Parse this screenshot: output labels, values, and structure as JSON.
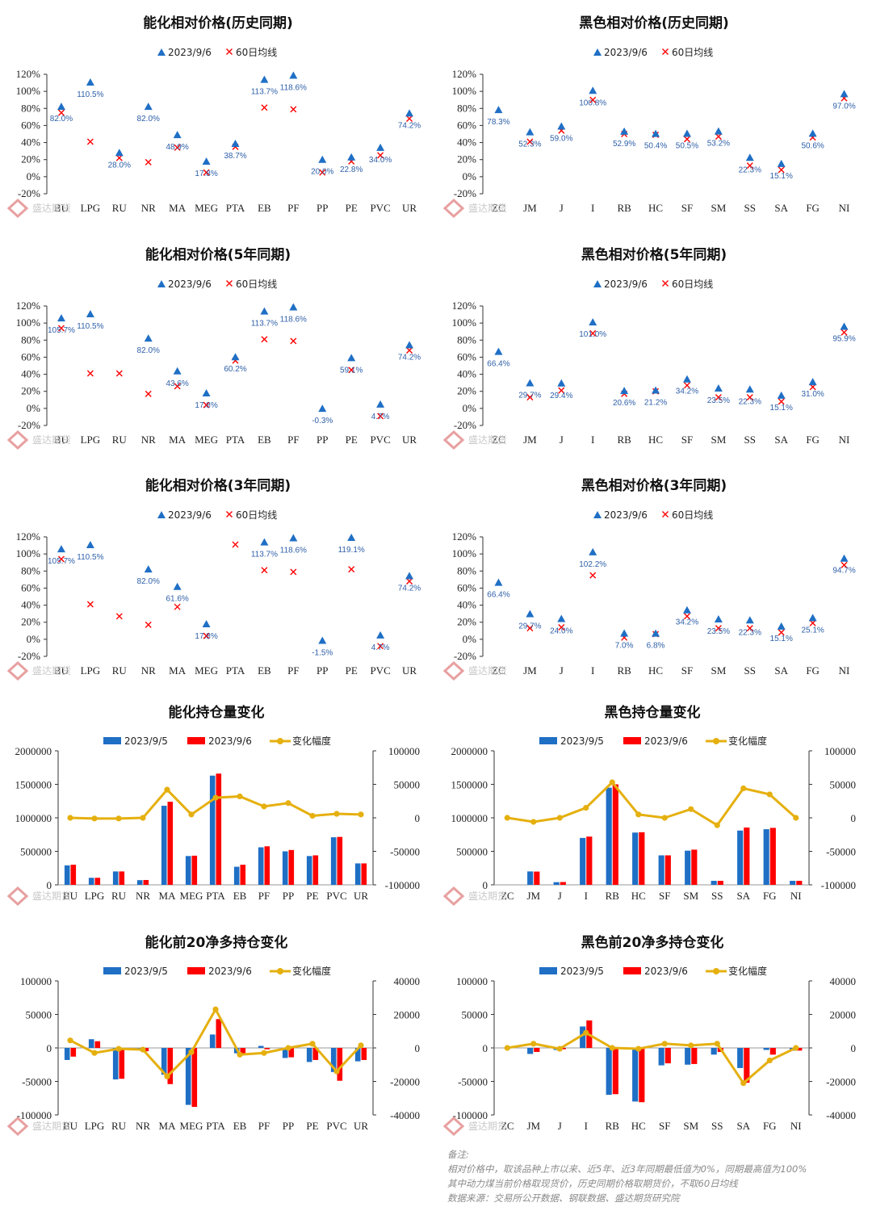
{
  "legend": {
    "rel_current": "2023/9/6",
    "rel_ma": "60日均线",
    "pos_prev": "2023/9/5",
    "pos_cur": "2023/9/6",
    "pos_change": "变化幅度"
  },
  "watermark": "盛达期货",
  "colors": {
    "blue": "#1F6FC5",
    "red": "#FF0000",
    "gold": "#E5B00F",
    "label": "#2E5FA8"
  },
  "notes": {
    "heading": "备注:",
    "line1": "相对价格中，取该品种上市以来、近5年、近3年同期最低值为0%，同期最高值为100%",
    "line2": "其中动力煤当前价格取现货价，历史同期价格取期货价，不取60日均线",
    "line3": "数据来源：交易所公开数据、钢联数据、盛达期货研究院"
  },
  "chart_data": [
    {
      "id": "c1",
      "type": "scatter",
      "title": "能化相对价格(历史同期)",
      "ylim": [
        -20,
        120
      ],
      "yticks": [
        -20,
        0,
        20,
        40,
        60,
        80,
        100,
        120
      ],
      "categories": [
        "BU",
        "LPG",
        "RU",
        "NR",
        "MA",
        "MEG",
        "PTA",
        "EB",
        "PF",
        "PP",
        "PE",
        "PVC",
        "UR"
      ],
      "current": [
        82.0,
        110.5,
        28.0,
        82.0,
        48.9,
        17.8,
        38.7,
        113.7,
        118.6,
        20.0,
        22.8,
        34.0,
        74.2
      ],
      "ma60": [
        75,
        41,
        22,
        17,
        34,
        5,
        35,
        81,
        79,
        5,
        18,
        25,
        68
      ],
      "labels": [
        "82.0%",
        "110.5%",
        "28.0%",
        "82.0%",
        "48.9%",
        "17.8%",
        "38.7%",
        "113.7%",
        "118.6%",
        "20.0%",
        "22.8%",
        "34.0%",
        "74.2%"
      ]
    },
    {
      "id": "c2",
      "type": "scatter",
      "title": "黑色相对价格(历史同期)",
      "ylim": [
        -20,
        120
      ],
      "yticks": [
        -20,
        0,
        20,
        40,
        60,
        80,
        100,
        120
      ],
      "categories": [
        "ZC",
        "JM",
        "J",
        "I",
        "RB",
        "HC",
        "SF",
        "SM",
        "SS",
        "SA",
        "FG",
        "NI"
      ],
      "current": [
        78.3,
        52.3,
        59.0,
        100.8,
        52.9,
        50.4,
        50.5,
        53.2,
        22.3,
        15.1,
        50.6,
        97.0
      ],
      "ma60": [
        null,
        41,
        54,
        90,
        50,
        49,
        44,
        47,
        13,
        8,
        46,
        92
      ],
      "labels": [
        "78.3%",
        "52.3%",
        "59.0%",
        "100.8%",
        "52.9%",
        "50.4%",
        "50.5%",
        "53.2%",
        "22.3%",
        "15.1%",
        "50.6%",
        "97.0%"
      ]
    },
    {
      "id": "c3",
      "type": "scatter",
      "title": "能化相对价格(5年同期)",
      "ylim": [
        -20,
        120
      ],
      "yticks": [
        -20,
        0,
        20,
        40,
        60,
        80,
        100,
        120
      ],
      "categories": [
        "BU",
        "LPG",
        "RU",
        "NR",
        "MA",
        "MEG",
        "PTA",
        "EB",
        "PF",
        "PP",
        "PE",
        "PVC",
        "UR"
      ],
      "current": [
        105.7,
        110.5,
        null,
        82.0,
        43.6,
        17.8,
        60.2,
        113.7,
        118.6,
        -0.3,
        59.1,
        4.7,
        74.2
      ],
      "ma60": [
        94,
        41,
        41,
        17,
        26,
        4,
        56,
        81,
        79,
        null,
        45,
        -9,
        68
      ],
      "labels": [
        "105.7%",
        "110.5%",
        "",
        "82.0%",
        "43.6%",
        "17.8%",
        "60.2%",
        "113.7%",
        "118.6%",
        "-0.3%",
        "59.1%",
        "4.7%",
        "74.2%"
      ]
    },
    {
      "id": "c4",
      "type": "scatter",
      "title": "黑色相对价格(5年同期)",
      "ylim": [
        -20,
        120
      ],
      "yticks": [
        -20,
        0,
        20,
        40,
        60,
        80,
        100,
        120
      ],
      "categories": [
        "ZC",
        "JM",
        "J",
        "I",
        "RB",
        "HC",
        "SF",
        "SM",
        "SS",
        "SA",
        "FG",
        "NI"
      ],
      "current": [
        66.4,
        29.7,
        29.4,
        101.0,
        20.6,
        21.2,
        34.2,
        23.5,
        22.3,
        15.1,
        31.0,
        95.9
      ],
      "ma60": [
        null,
        13,
        21,
        88,
        17,
        20,
        27,
        13,
        13,
        8,
        25,
        89
      ],
      "labels": [
        "66.4%",
        "29.7%",
        "29.4%",
        "101.0%",
        "20.6%",
        "21.2%",
        "34.2%",
        "23.5%",
        "22.3%",
        "15.1%",
        "31.0%",
        "95.9%"
      ]
    },
    {
      "id": "c5",
      "type": "scatter",
      "title": "能化相对价格(3年同期)",
      "ylim": [
        -20,
        120
      ],
      "yticks": [
        -20,
        0,
        20,
        40,
        60,
        80,
        100,
        120
      ],
      "categories": [
        "BU",
        "LPG",
        "RU",
        "NR",
        "MA",
        "MEG",
        "PTA",
        "EB",
        "PF",
        "PP",
        "PE",
        "PVC",
        "UR"
      ],
      "current": [
        105.7,
        110.5,
        null,
        82.0,
        61.6,
        17.8,
        null,
        113.7,
        118.6,
        -1.5,
        119.1,
        4.7,
        74.2
      ],
      "ma60": [
        94,
        41,
        27,
        17,
        38,
        4,
        111,
        81,
        79,
        null,
        82,
        -8,
        68
      ],
      "labels": [
        "105.7%",
        "110.5%",
        "",
        "82.0%",
        "61.6%",
        "17.8%",
        "",
        "113.7%",
        "118.6%",
        "-1.5%",
        "119.1%",
        "4.7%",
        "74.2%"
      ]
    },
    {
      "id": "c6",
      "type": "scatter",
      "title": "黑色相对价格(3年同期)",
      "ylim": [
        -20,
        120
      ],
      "yticks": [
        -20,
        0,
        20,
        40,
        60,
        80,
        100,
        120
      ],
      "categories": [
        "ZC",
        "JM",
        "J",
        "I",
        "RB",
        "HC",
        "SF",
        "SM",
        "SS",
        "SA",
        "FG",
        "NI"
      ],
      "current": [
        66.4,
        29.7,
        24.0,
        102.2,
        7.0,
        6.8,
        34.2,
        23.5,
        22.3,
        15.1,
        25.1,
        94.7
      ],
      "ma60": [
        null,
        13,
        14,
        75,
        2,
        6,
        27,
        13,
        13,
        8,
        19,
        87
      ],
      "labels": [
        "66.4%",
        "29.7%",
        "24.0%",
        "102.2%",
        "7.0%",
        "6.8%",
        "34.2%",
        "23.5%",
        "22.3%",
        "15.1%",
        "25.1%",
        "94.7%"
      ]
    },
    {
      "id": "c7",
      "type": "bar-line",
      "title": "能化持仓量变化",
      "ylim": [
        0,
        2000000
      ],
      "yticks": [
        0,
        500000,
        1000000,
        1500000,
        2000000
      ],
      "y2lim": [
        -100000,
        100000
      ],
      "y2ticks": [
        -100000,
        -50000,
        0,
        50000,
        100000
      ],
      "categories": [
        "BU",
        "LPG",
        "RU",
        "NR",
        "MA",
        "MEG",
        "PTA",
        "EB",
        "PF",
        "PP",
        "PE",
        "PVC",
        "UR"
      ],
      "series_prev": [
        290000,
        105000,
        200000,
        70000,
        1180000,
        430000,
        1630000,
        270000,
        560000,
        500000,
        430000,
        710000,
        320000
      ],
      "series_cur": [
        300000,
        105000,
        200000,
        72000,
        1240000,
        435000,
        1660000,
        300000,
        575000,
        520000,
        440000,
        715000,
        320000
      ],
      "change": [
        0,
        -1000,
        -1000,
        0,
        42000,
        5000,
        30000,
        32000,
        17000,
        22000,
        3000,
        6000,
        5000
      ]
    },
    {
      "id": "c8",
      "type": "bar-line",
      "title": "黑色持仓量变化",
      "ylim": [
        0,
        2000000
      ],
      "yticks": [
        0,
        500000,
        1000000,
        1500000,
        2000000
      ],
      "y2lim": [
        -100000,
        100000
      ],
      "y2ticks": [
        -100000,
        -50000,
        0,
        50000,
        100000
      ],
      "categories": [
        "ZC",
        "JM",
        "J",
        "I",
        "RB",
        "HC",
        "SF",
        "SM",
        "SS",
        "SA",
        "FG",
        "NI"
      ],
      "series_prev": [
        0,
        200000,
        40000,
        700000,
        1450000,
        780000,
        440000,
        510000,
        60000,
        810000,
        830000,
        60000
      ],
      "series_cur": [
        0,
        198000,
        42000,
        720000,
        1500000,
        785000,
        440000,
        525000,
        60000,
        855000,
        850000,
        60000
      ],
      "change": [
        0,
        -6000,
        0,
        15000,
        53000,
        5000,
        0,
        13000,
        -11000,
        44000,
        35000,
        0
      ]
    },
    {
      "id": "c9",
      "type": "bar-line",
      "title": "能化前20净多持仓变化",
      "ylim": [
        -100000,
        100000
      ],
      "yticks": [
        -100000,
        -50000,
        0,
        50000,
        100000
      ],
      "y2lim": [
        -40000,
        40000
      ],
      "y2ticks": [
        -40000,
        -20000,
        0,
        20000,
        40000
      ],
      "categories": [
        "BU",
        "LPG",
        "RU",
        "NR",
        "MA",
        "MEG",
        "PTA",
        "EB",
        "PF",
        "PP",
        "PE",
        "PVC",
        "UR"
      ],
      "series_prev": [
        -18000,
        13000,
        -47000,
        -3000,
        -40000,
        -85000,
        20000,
        -8000,
        3000,
        -15000,
        -21000,
        -36000,
        -20000
      ],
      "series_cur": [
        -13000,
        10000,
        -46000,
        -5000,
        -54000,
        -88000,
        43000,
        -10000,
        -2000,
        -14000,
        -18000,
        -49000,
        -18000
      ],
      "change": [
        4500,
        -3000,
        -500,
        -1000,
        -17000,
        -2500,
        23000,
        -4000,
        -3000,
        0,
        2500,
        -14000,
        1500
      ]
    },
    {
      "id": "c10",
      "type": "bar-line",
      "title": "黑色前20净多持仓变化",
      "ylim": [
        -100000,
        100000
      ],
      "yticks": [
        -100000,
        -50000,
        0,
        50000,
        100000
      ],
      "y2lim": [
        -40000,
        40000
      ],
      "y2ticks": [
        -40000,
        -20000,
        0,
        20000,
        40000
      ],
      "categories": [
        "ZC",
        "JM",
        "J",
        "I",
        "RB",
        "HC",
        "SF",
        "SM",
        "SS",
        "SA",
        "FG",
        "NI"
      ],
      "series_prev": [
        0,
        -9000,
        -3000,
        32000,
        -70000,
        -80000,
        -26000,
        -25000,
        -10000,
        -30000,
        -3000,
        -4000
      ],
      "series_cur": [
        0,
        -6000,
        -2000,
        41000,
        -69000,
        -81000,
        -23000,
        -24000,
        -6000,
        -52000,
        -10000,
        -4000
      ],
      "change": [
        0,
        2500,
        -500,
        9000,
        0,
        -500,
        2500,
        1500,
        2500,
        -21000,
        -7500,
        0
      ]
    }
  ]
}
